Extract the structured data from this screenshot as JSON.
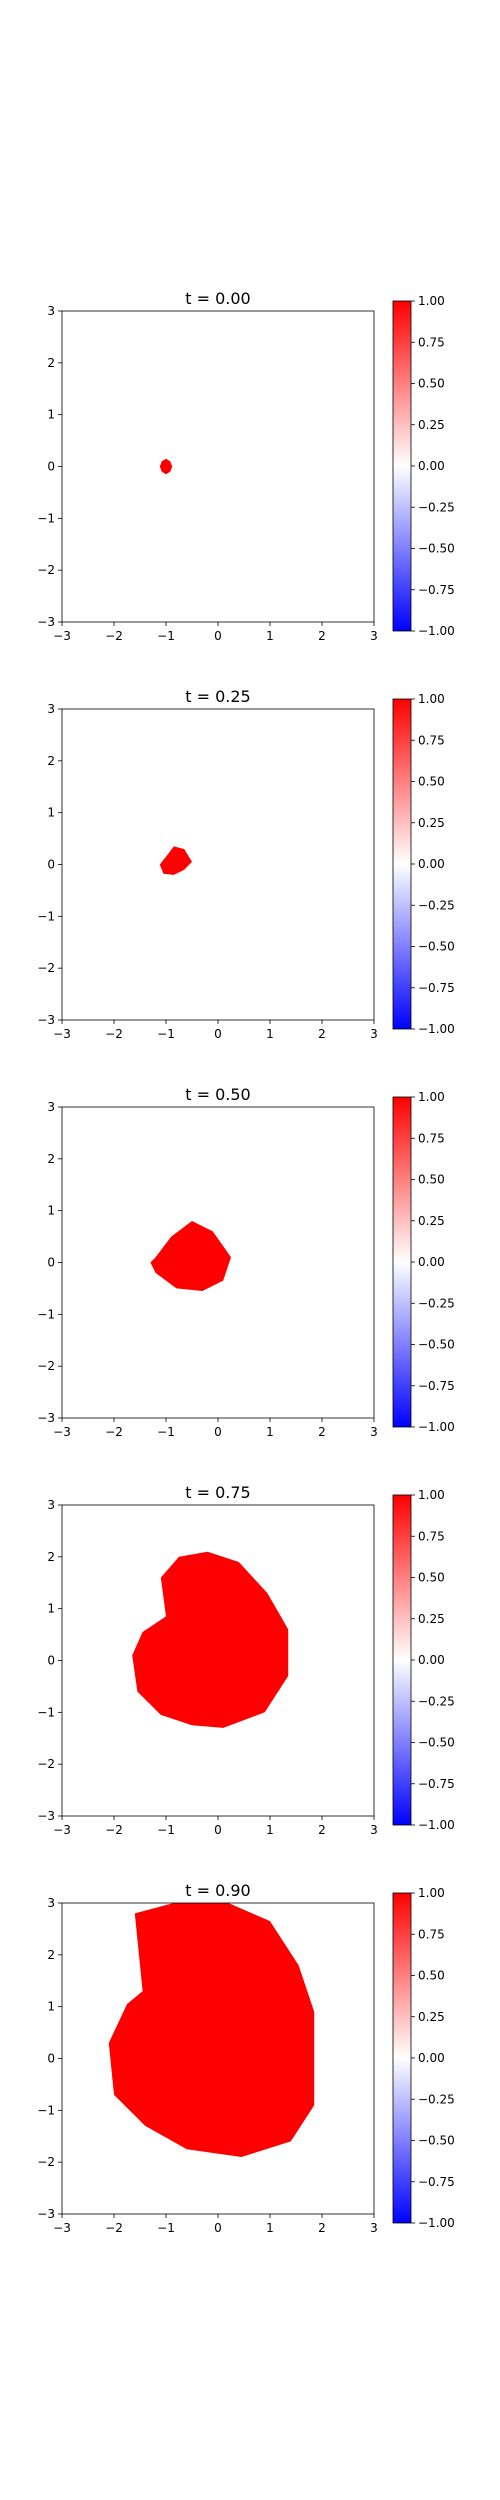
{
  "chart_data": [
    {
      "type": "heatmap",
      "title": "t = 0.00",
      "xlim": [
        -3,
        3
      ],
      "ylim": [
        -3,
        3
      ],
      "xticks": [
        -3,
        -2,
        -1,
        0,
        1,
        2,
        3
      ],
      "yticks": [
        -3,
        -2,
        -1,
        0,
        1,
        2,
        3
      ],
      "colorbar": {
        "range": [
          -1.0,
          1.0
        ],
        "ticks": [
          "−1.00",
          "−0.75",
          "−0.50",
          "−0.25",
          "0.00",
          "0.25",
          "0.50",
          "0.75",
          "1.00"
        ],
        "colors": {
          "low": "#0000ff",
          "mid": "#ffffff",
          "high": "#ff0000"
        }
      },
      "grid": false,
      "region": {
        "value": 1.0,
        "color": "#ff0000",
        "boundary": [
          [
            -1.08,
            0.1
          ],
          [
            -1.0,
            0.15
          ],
          [
            -0.92,
            0.1
          ],
          [
            -0.88,
            0.0
          ],
          [
            -0.92,
            -0.1
          ],
          [
            -1.0,
            -0.15
          ],
          [
            -1.08,
            -0.1
          ],
          [
            -1.12,
            0.0
          ]
        ]
      }
    },
    {
      "type": "heatmap",
      "title": "t = 0.25",
      "xlim": [
        -3,
        3
      ],
      "ylim": [
        -3,
        3
      ],
      "xticks": [
        -3,
        -2,
        -1,
        0,
        1,
        2,
        3
      ],
      "yticks": [
        -3,
        -2,
        -1,
        0,
        1,
        2,
        3
      ],
      "colorbar": {
        "range": [
          -1.0,
          1.0
        ],
        "ticks": [
          "−1.00",
          "−0.75",
          "−0.50",
          "−0.25",
          "0.00",
          "0.25",
          "0.50",
          "0.75",
          "1.00"
        ],
        "colors": {
          "low": "#0000ff",
          "mid": "#ffffff",
          "high": "#ff0000"
        }
      },
      "grid": false,
      "region": {
        "value": 1.0,
        "color": "#ff0000",
        "boundary": [
          [
            -1.0,
            0.15
          ],
          [
            -0.85,
            0.35
          ],
          [
            -0.65,
            0.3
          ],
          [
            -0.5,
            0.05
          ],
          [
            -0.65,
            -0.1
          ],
          [
            -0.85,
            -0.2
          ],
          [
            -1.05,
            -0.18
          ],
          [
            -1.12,
            0.0
          ]
        ]
      }
    },
    {
      "type": "heatmap",
      "title": "t = 0.50",
      "xlim": [
        -3,
        3
      ],
      "ylim": [
        -3,
        3
      ],
      "xticks": [
        -3,
        -2,
        -1,
        0,
        1,
        2,
        3
      ],
      "yticks": [
        -3,
        -2,
        -1,
        0,
        1,
        2,
        3
      ],
      "colorbar": {
        "range": [
          -1.0,
          1.0
        ],
        "ticks": [
          "−1.00",
          "−0.75",
          "−0.50",
          "−0.25",
          "0.00",
          "0.25",
          "0.50",
          "0.75",
          "1.00"
        ],
        "colors": {
          "low": "#0000ff",
          "mid": "#ffffff",
          "high": "#ff0000"
        }
      },
      "grid": false,
      "region": {
        "value": 1.0,
        "color": "#ff0000",
        "boundary": [
          [
            -1.2,
            0.1
          ],
          [
            -0.9,
            0.5
          ],
          [
            -0.5,
            0.8
          ],
          [
            -0.1,
            0.6
          ],
          [
            0.25,
            0.1
          ],
          [
            0.1,
            -0.35
          ],
          [
            -0.3,
            -0.55
          ],
          [
            -0.8,
            -0.5
          ],
          [
            -1.2,
            -0.2
          ],
          [
            -1.3,
            0.0
          ]
        ]
      }
    },
    {
      "type": "heatmap",
      "title": "t = 0.75",
      "xlim": [
        -3,
        3
      ],
      "ylim": [
        -3,
        3
      ],
      "xticks": [
        -3,
        -2,
        -1,
        0,
        1,
        2,
        3
      ],
      "yticks": [
        -3,
        -2,
        -1,
        0,
        1,
        2,
        3
      ],
      "colorbar": {
        "range": [
          -1.0,
          1.0
        ],
        "ticks": [
          "−1.00",
          "−0.75",
          "−0.50",
          "−0.25",
          "0.00",
          "0.25",
          "0.50",
          "0.75",
          "1.00"
        ],
        "colors": {
          "low": "#0000ff",
          "mid": "#ffffff",
          "high": "#ff0000"
        }
      },
      "grid": false,
      "region": {
        "value": 1.0,
        "color": "#ff0000",
        "boundary": [
          [
            -1.0,
            0.85
          ],
          [
            -1.1,
            1.6
          ],
          [
            -0.75,
            2.0
          ],
          [
            -0.2,
            2.1
          ],
          [
            0.4,
            1.9
          ],
          [
            0.95,
            1.3
          ],
          [
            1.35,
            0.6
          ],
          [
            1.35,
            -0.3
          ],
          [
            0.9,
            -1.0
          ],
          [
            0.1,
            -1.3
          ],
          [
            -0.5,
            -1.25
          ],
          [
            -1.1,
            -1.05
          ],
          [
            -1.55,
            -0.6
          ],
          [
            -1.65,
            0.1
          ],
          [
            -1.45,
            0.55
          ]
        ]
      }
    },
    {
      "type": "heatmap",
      "title": "t = 0.90",
      "xlim": [
        -3,
        3
      ],
      "ylim": [
        -3,
        3
      ],
      "xticks": [
        -3,
        -2,
        -1,
        0,
        1,
        2,
        3
      ],
      "yticks": [
        -3,
        -2,
        -1,
        0,
        1,
        2,
        3
      ],
      "colorbar": {
        "range": [
          -1.0,
          1.0
        ],
        "ticks": [
          "−1.00",
          "−0.75",
          "−0.50",
          "−0.25",
          "0.00",
          "0.25",
          "0.50",
          "0.75",
          "1.00"
        ],
        "colors": {
          "low": "#0000ff",
          "mid": "#ffffff",
          "high": "#ff0000"
        }
      },
      "grid": false,
      "region": {
        "value": 1.0,
        "color": "#ff0000",
        "boundary": [
          [
            -1.45,
            1.3
          ],
          [
            -1.6,
            2.8
          ],
          [
            -0.85,
            3.0
          ],
          [
            0.2,
            3.0
          ],
          [
            1.0,
            2.65
          ],
          [
            1.55,
            1.8
          ],
          [
            1.85,
            0.9
          ],
          [
            1.85,
            -0.9
          ],
          [
            1.4,
            -1.6
          ],
          [
            0.45,
            -1.9
          ],
          [
            -0.6,
            -1.75
          ],
          [
            -1.4,
            -1.3
          ],
          [
            -2.0,
            -0.7
          ],
          [
            -2.1,
            0.3
          ],
          [
            -1.75,
            1.05
          ]
        ]
      }
    }
  ]
}
